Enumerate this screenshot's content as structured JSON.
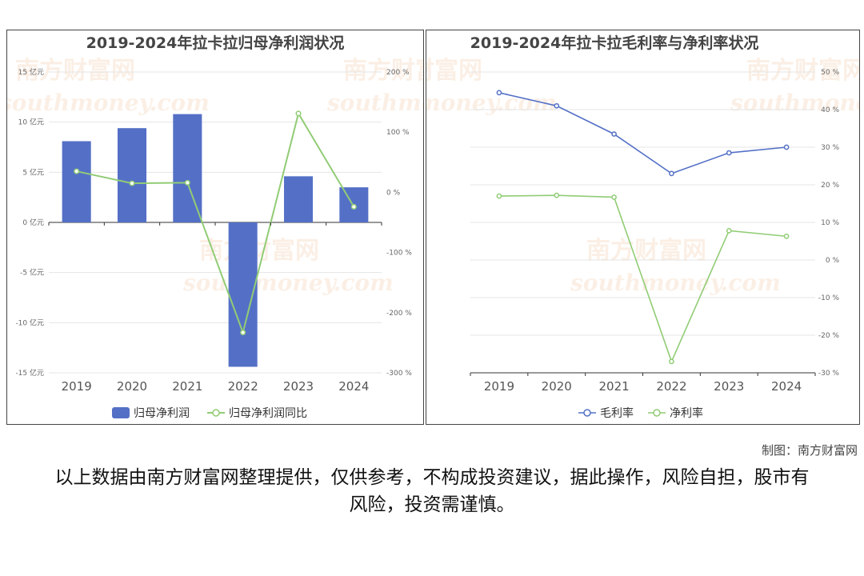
{
  "credit": "制图：南方财富网",
  "disclaimer": "以上数据由南方财富网整理提供，仅供参考，不构成投资建议，据此操作，风险自担，股市有风险，投资需谨慎。",
  "watermark": {
    "cn": "南方财富网",
    "en": "southmoney.com"
  },
  "colors": {
    "bar": "#5470c6",
    "line_green": "#91cc75",
    "line_blue": "#5470c6"
  },
  "chart_data": [
    {
      "type": "bar",
      "title": "2019-2024年拉卡拉归母净利润状况",
      "categories": [
        "2019",
        "2020",
        "2021",
        "2022",
        "2023",
        "2024"
      ],
      "y_left": {
        "min": -15,
        "max": 15,
        "ticks": [
          "15 亿元",
          "10 亿元",
          "5 亿元",
          "0 亿元",
          "-5 亿元",
          "-10 亿元",
          "-15 亿元"
        ]
      },
      "y_right": {
        "min": -300,
        "max": 200,
        "ticks": [
          "200 %",
          "100 %",
          "0 %",
          "-100 %",
          "-200 %",
          "-300 %"
        ]
      },
      "series": [
        {
          "name": "归母净利润",
          "type": "bar",
          "axis": "left",
          "values": [
            8.1,
            9.4,
            10.8,
            -14.4,
            4.6,
            3.5
          ]
        },
        {
          "name": "归母净利润同比",
          "type": "line",
          "axis": "right",
          "values": [
            35,
            15,
            16,
            -233,
            131,
            -24
          ]
        }
      ],
      "legend": "bottom-center"
    },
    {
      "type": "line",
      "title": "2019-2024年拉卡拉毛利率与净利率状况",
      "categories": [
        "2019",
        "2020",
        "2021",
        "2022",
        "2023",
        "2024"
      ],
      "y": {
        "min": -30,
        "max": 50,
        "ticks": [
          "50 %",
          "40 %",
          "30 %",
          "20 %",
          "10 %",
          "0 %",
          "-10 %",
          "-20 %",
          "-30 %"
        ]
      },
      "series": [
        {
          "name": "毛利率",
          "values": [
            44.5,
            41,
            33.5,
            23,
            28.5,
            30
          ]
        },
        {
          "name": "净利率",
          "values": [
            17,
            17.2,
            16.7,
            -27,
            7.8,
            6.3
          ]
        }
      ],
      "legend": "bottom-center"
    }
  ]
}
